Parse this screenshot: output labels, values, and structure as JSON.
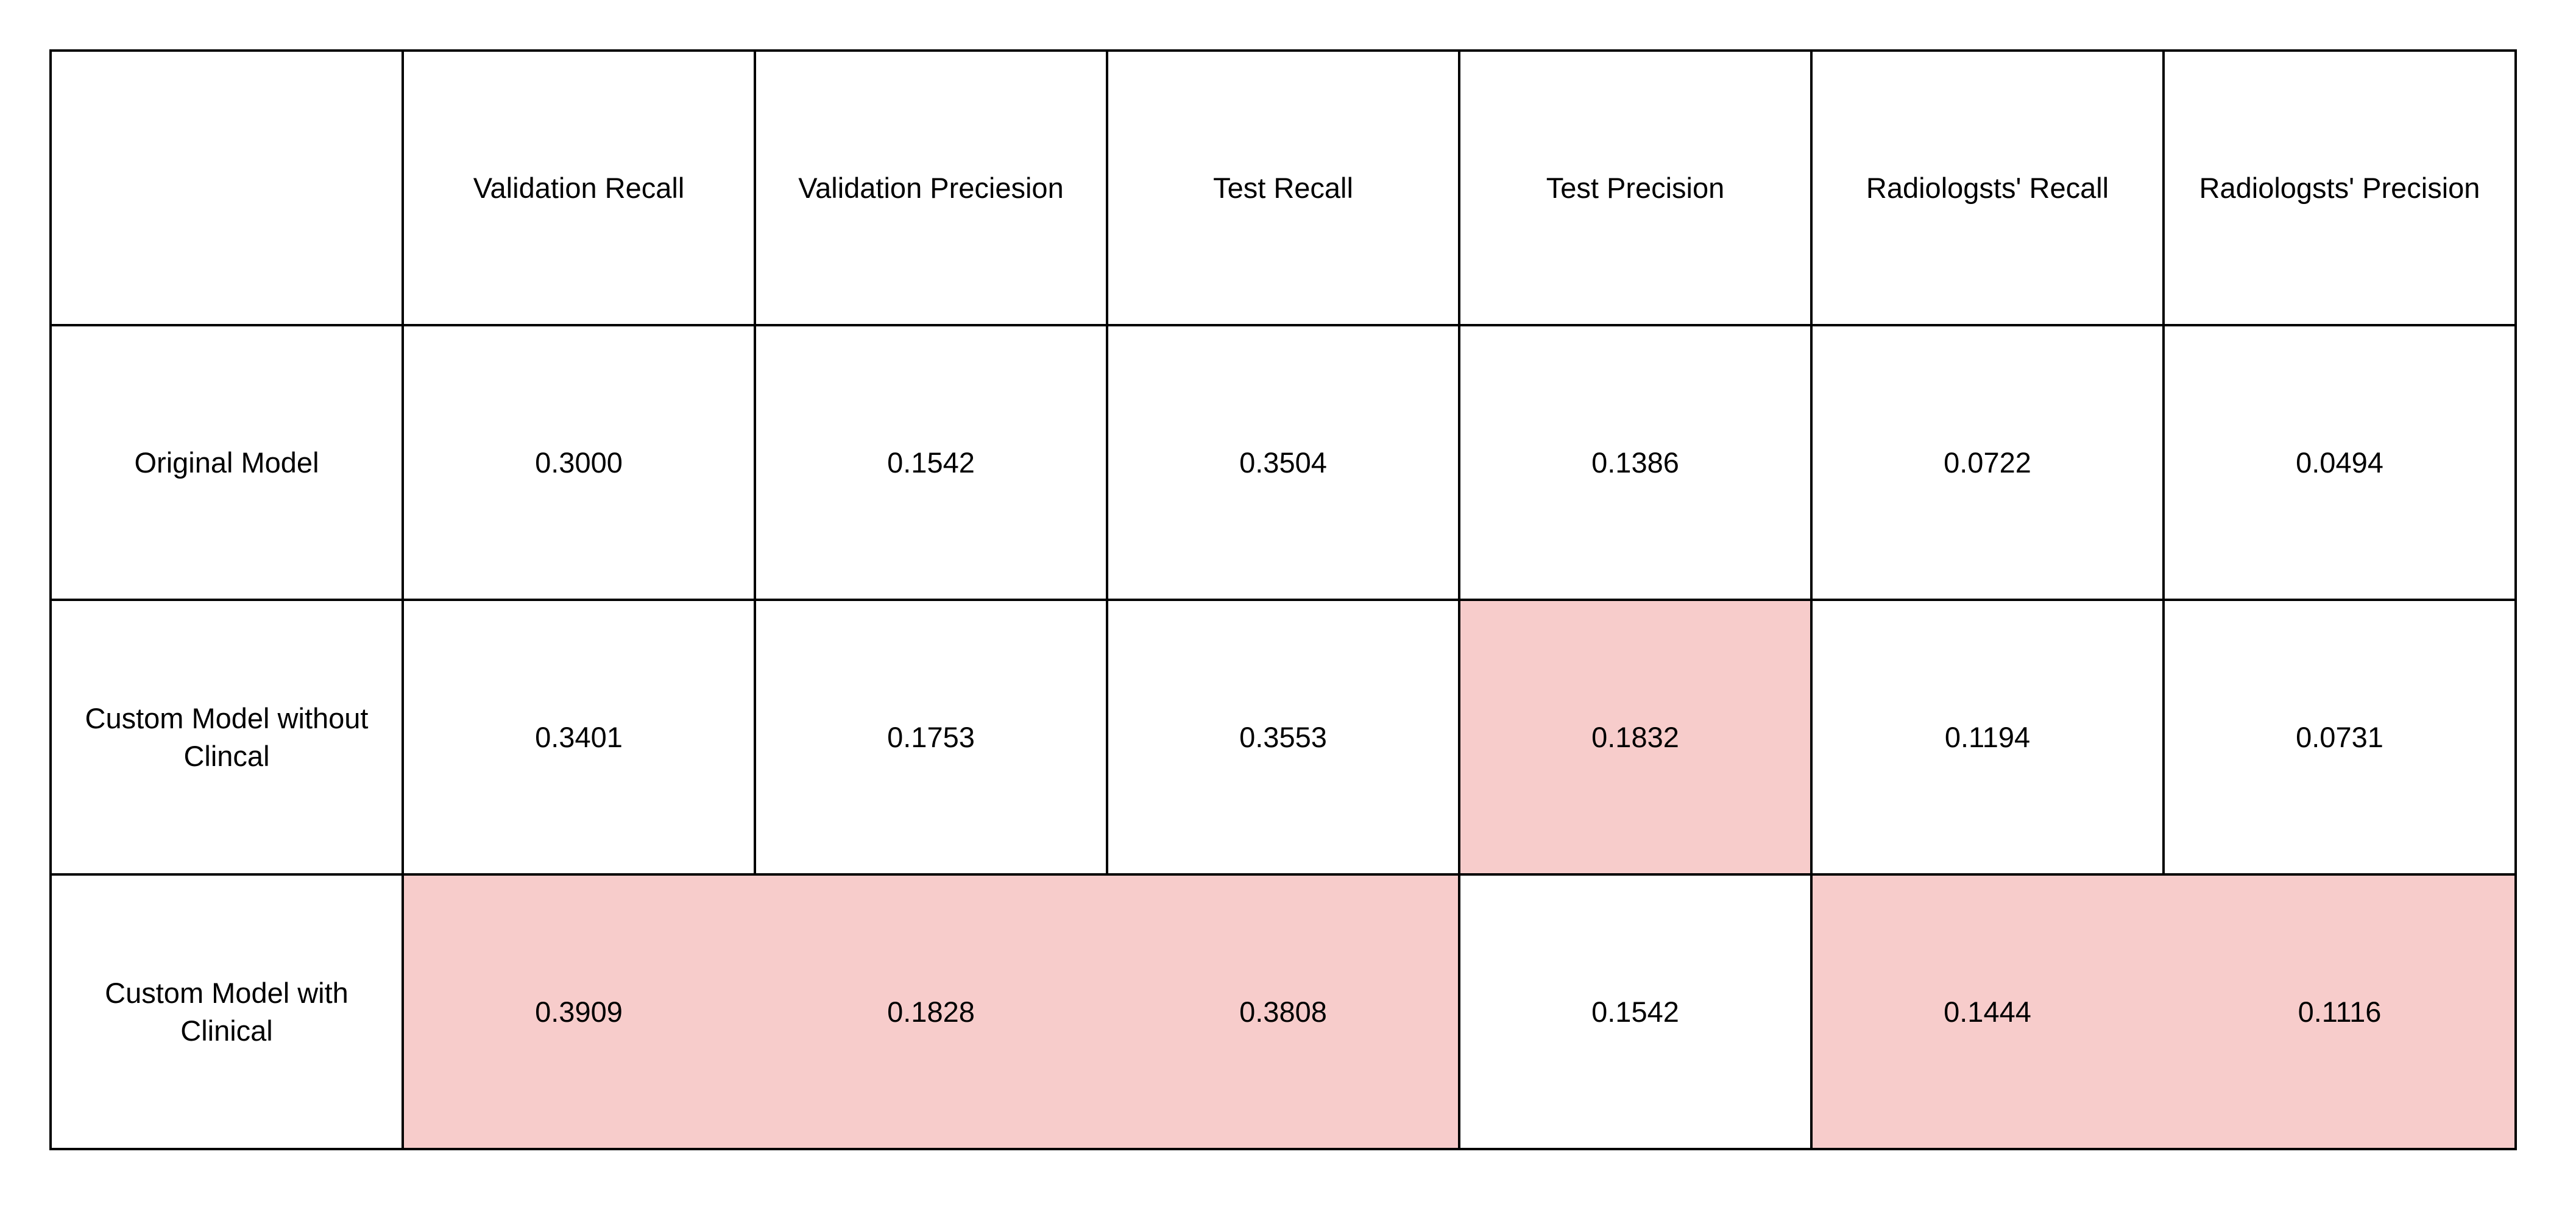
{
  "chart_data": {
    "type": "table",
    "columns": [
      "",
      "Validation Recall",
      "Validation Preciesion",
      "Test Recall",
      "Test Precision",
      "Radiologsts' Recall",
      "Radiologsts' Precision"
    ],
    "rows": [
      {
        "label": "Original Model",
        "values": [
          "0.3000",
          "0.1542",
          "0.3504",
          "0.1386",
          "0.0722",
          "0.0494"
        ],
        "highlight": [
          false,
          false,
          false,
          false,
          false,
          false
        ]
      },
      {
        "label": "Custom Model without Clincal",
        "values": [
          "0.3401",
          "0.1753",
          "0.3553",
          "0.1832",
          "0.1194",
          "0.0731"
        ],
        "highlight": [
          false,
          false,
          false,
          true,
          false,
          false
        ]
      },
      {
        "label": "Custom Model with Clinical",
        "values": [
          "0.3909",
          "0.1828",
          "0.3808",
          "0.1542",
          "0.1444",
          "0.1116"
        ],
        "highlight": [
          true,
          true,
          true,
          false,
          true,
          true
        ]
      }
    ],
    "highlight_color": "#f7cccb"
  }
}
